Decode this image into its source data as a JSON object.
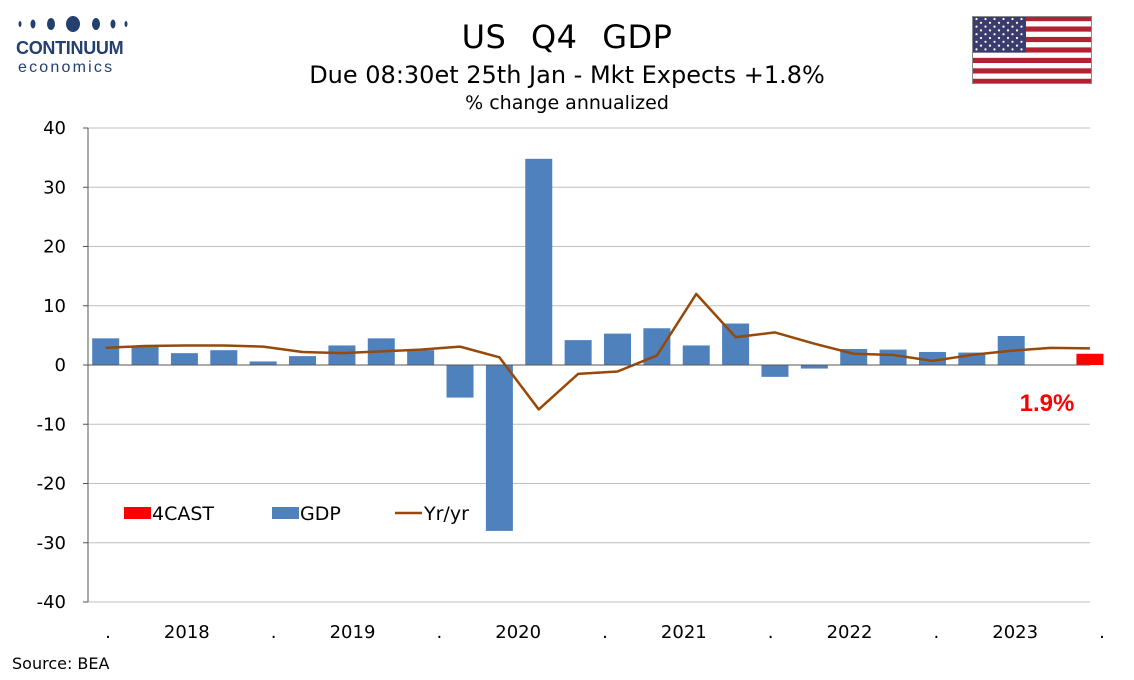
{
  "header": {
    "title": "US   Q4  GDP",
    "subtitle": "Due 08:30et 25th Jan - Mkt Expects +1.8%",
    "unit": "% change annualized"
  },
  "logo": {
    "word1": "CONTINUUM",
    "word2": "economics",
    "color": "#23406f"
  },
  "flag": {
    "icon": "us-flag-icon"
  },
  "footer": {
    "source": "Source: BEA"
  },
  "colors": {
    "gdp": "#4f81bd",
    "forecast": "#ff0000",
    "yoy": "#984807",
    "grid": "#bfbfbf"
  },
  "chart_data": {
    "type": "bar",
    "ylim": [
      -40,
      40
    ],
    "y_ticks": [
      "40",
      "30",
      "20",
      "10",
      "0",
      "-10",
      "-20",
      "-30",
      "-40"
    ],
    "x_tick_labels": [
      ".",
      "2018",
      ".",
      "2019",
      ".",
      "2020",
      ".",
      "2021",
      ".",
      "2022",
      ".",
      "2023",
      "."
    ],
    "grid": true,
    "legend_position": "lower-left",
    "quarters": [
      "2017Q3",
      "2017Q4",
      "2018Q1",
      "2018Q2",
      "2018Q3",
      "2018Q4",
      "2019Q1",
      "2019Q2",
      "2019Q3",
      "2019Q4",
      "2020Q1",
      "2020Q2",
      "2020Q3",
      "2020Q4",
      "2021Q1",
      "2021Q2",
      "2021Q3",
      "2021Q4",
      "2022Q1",
      "2022Q2",
      "2022Q3",
      "2022Q4",
      "2023Q1",
      "2023Q2",
      "2023Q3",
      "2023Q4"
    ],
    "series": [
      {
        "name": "4CAST",
        "kind": "bar",
        "values": [
          null,
          null,
          null,
          null,
          null,
          null,
          null,
          null,
          null,
          null,
          null,
          null,
          null,
          null,
          null,
          null,
          null,
          null,
          null,
          null,
          null,
          null,
          null,
          null,
          null,
          1.9
        ]
      },
      {
        "name": "GDP",
        "kind": "bar",
        "values": [
          4.5,
          3.2,
          2.0,
          2.5,
          0.6,
          1.5,
          3.3,
          4.5,
          2.5,
          -5.5,
          -28.0,
          34.8,
          4.2,
          5.3,
          6.2,
          3.3,
          7.0,
          -2.0,
          -0.6,
          2.7,
          2.6,
          2.2,
          2.1,
          4.9,
          null,
          null
        ]
      },
      {
        "name": "Yr/yr",
        "kind": "line",
        "values": [
          2.9,
          3.2,
          3.3,
          3.3,
          3.1,
          2.2,
          2.0,
          2.3,
          2.6,
          3.1,
          1.3,
          -7.5,
          -1.5,
          -1.1,
          1.6,
          12.0,
          4.7,
          5.5,
          3.6,
          1.9,
          1.7,
          0.7,
          1.7,
          2.4,
          2.9,
          2.8
        ]
      }
    ],
    "annotations": [
      {
        "text": "1.9%"
      }
    ]
  }
}
